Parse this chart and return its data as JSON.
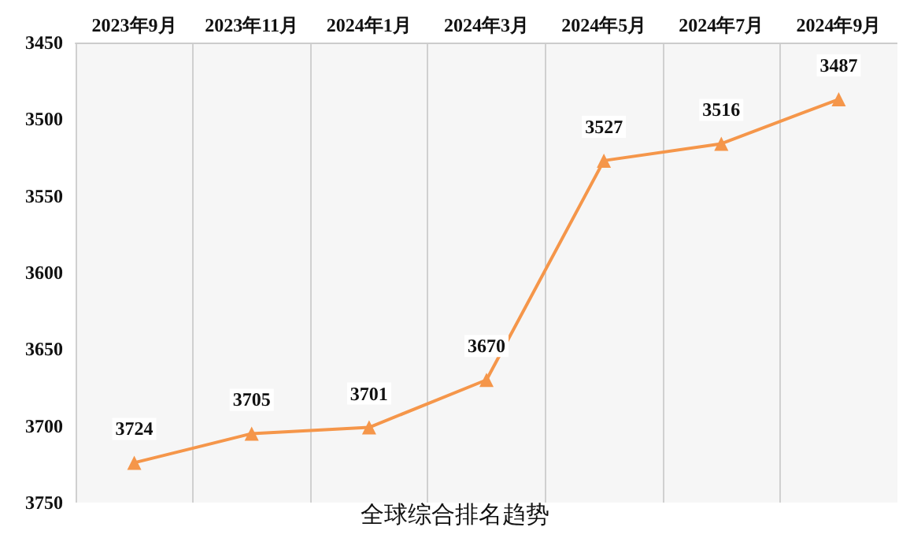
{
  "chart_data": {
    "type": "line",
    "title": "全球综合排名趋势",
    "categories": [
      "2023年9月",
      "2023年11月",
      "2024年1月",
      "2024年3月",
      "2024年5月",
      "2024年7月",
      "2024年9月"
    ],
    "series": [
      {
        "color": "#f5964a",
        "values": [
          3724,
          3705,
          3701,
          3670,
          3527,
          3516,
          3487
        ]
      }
    ],
    "ylim": [
      3750,
      3450
    ],
    "yticks": [
      3450,
      3500,
      3550,
      3600,
      3650,
      3700,
      3750
    ],
    "grid": "x",
    "marker": "triangle",
    "data_labels": true
  }
}
